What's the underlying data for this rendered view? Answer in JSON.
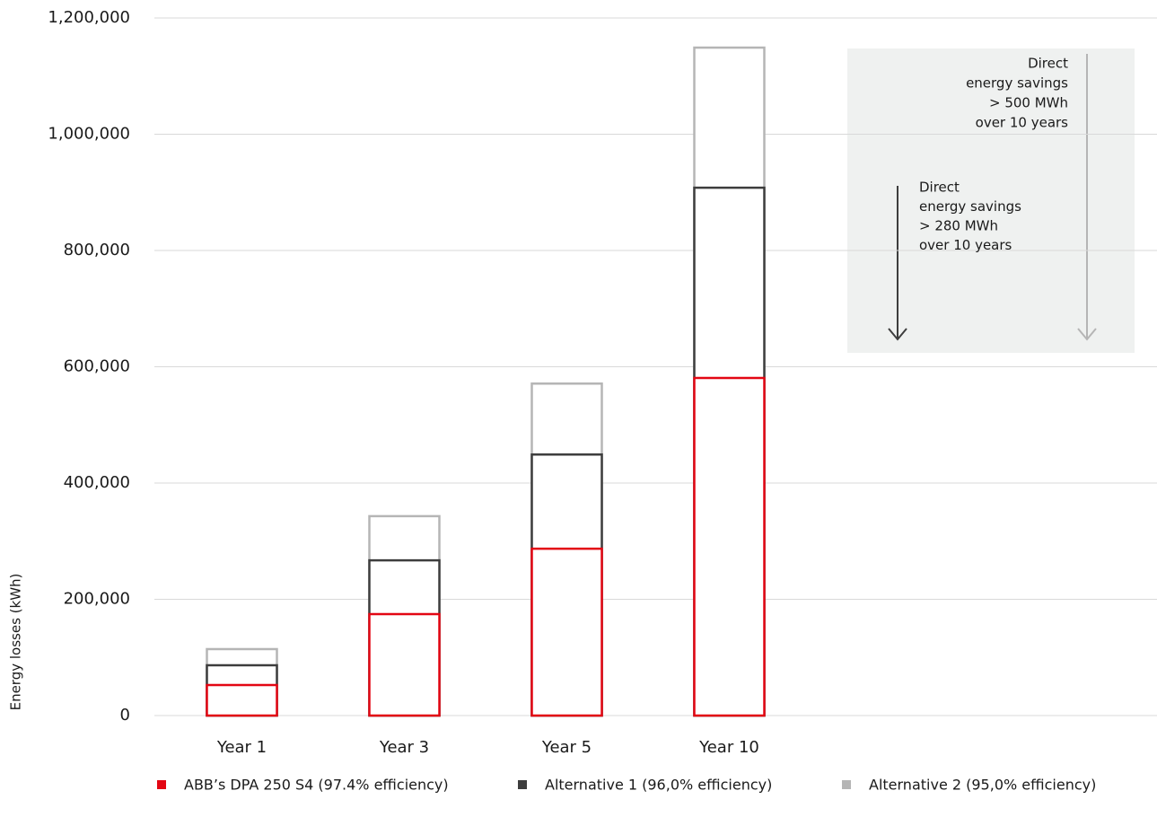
{
  "chart_data": {
    "type": "bar",
    "y_label": "Energy losses (kWh)",
    "categories": [
      "Year 1",
      "Year 3",
      "Year 5",
      "Year 10"
    ],
    "series": [
      {
        "name": "ABB’s DPA 250 S4 (97.4% efficiency)",
        "color": "#e30613",
        "values": [
          52500,
          174500,
          287000,
          580700
        ]
      },
      {
        "name": "Alternative 1 (96,0% efficiency)",
        "color": "#3d3d3d",
        "values": [
          86500,
          267000,
          449000,
          908000
        ]
      },
      {
        "name": "Alternative 2 (95,0% efficiency)",
        "color": "#b5b5b5",
        "values": [
          114300,
          343000,
          571000,
          1149000
        ]
      }
    ],
    "ylim": [
      0,
      1200000
    ],
    "yticks": [
      0,
      {
        "value": 200000,
        "label": "200,000"
      },
      {
        "value": 400000,
        "label": "400,000"
      },
      {
        "value": 600000,
        "label": "600,000"
      },
      {
        "value": 800000,
        "label": "800,000"
      },
      {
        "value": 1000000,
        "label": "1,000,000"
      },
      {
        "value": 1200000,
        "label": "1,200,000"
      }
    ],
    "grid": true,
    "annotations": [
      {
        "lines": [
          "Direct",
          "energy savings",
          "> 500 MWh",
          "over 10 years"
        ]
      },
      {
        "lines": [
          "Direct",
          "energy savings",
          "> 280 MWh",
          "over 10 years"
        ]
      }
    ]
  }
}
